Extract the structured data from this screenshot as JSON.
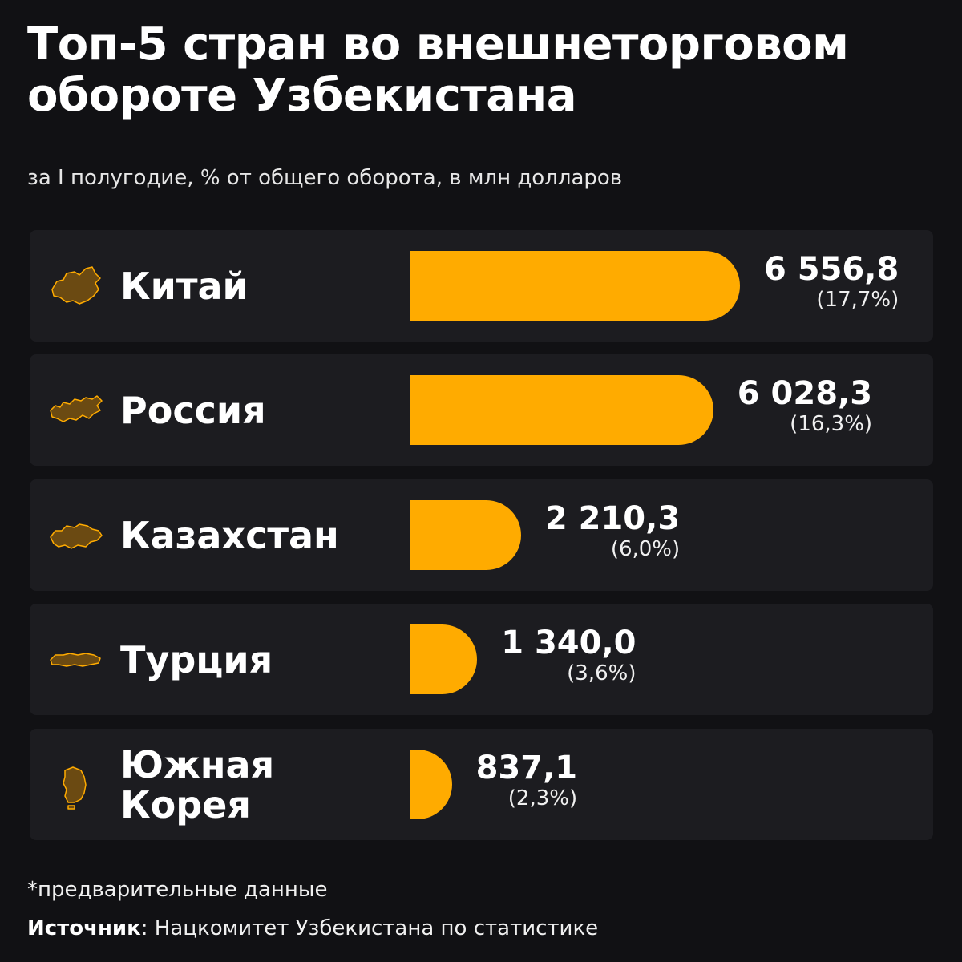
{
  "title": "Топ-5 стран во внешнеторговом обороте Узбекистана",
  "subtitle": "за I полугодие, % от общего оборота, в млн долларов",
  "colors": {
    "background": "#111114",
    "row_background": "#1c1c20",
    "bar": "#ffab00",
    "map_fill": "#6b4a12",
    "map_stroke": "#ffab00"
  },
  "chart_data": {
    "type": "bar",
    "orientation": "horizontal",
    "categories": [
      "Китай",
      "Россия",
      "Казахстан",
      "Турция",
      "Южная Корея"
    ],
    "values": [
      6556.8,
      6028.3,
      2210.3,
      1340.0,
      837.1
    ],
    "percents": [
      17.7,
      16.3,
      6.0,
      3.6,
      2.3
    ],
    "value_labels": [
      "6 556,8",
      "6 028,3",
      "2 210,3",
      "1 340,0",
      "837,1"
    ],
    "percent_labels": [
      "(17,7%)",
      "(16,3%)",
      "(6,0%)",
      "(3,6%)",
      "(2,3%)"
    ],
    "icons": [
      "china-map-icon",
      "russia-map-icon",
      "kazakhstan-map-icon",
      "turkey-map-icon",
      "south-korea-map-icon"
    ],
    "unit": "млн долларов",
    "grid": false,
    "legend": "none"
  },
  "footnote": "*предварительные данные",
  "source": {
    "label": "Источник",
    "text": ": Нацкомитет Узбекистана по статистике"
  }
}
